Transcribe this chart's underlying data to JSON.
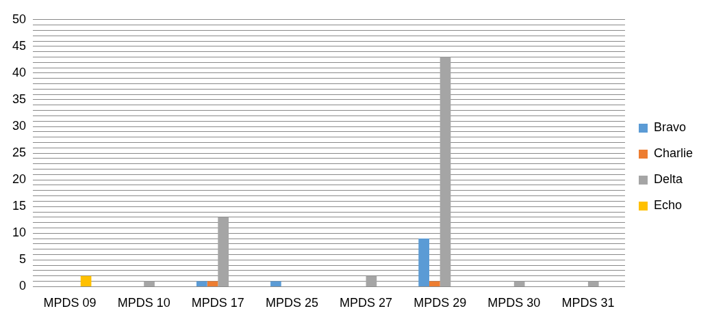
{
  "chart_data": {
    "type": "bar",
    "categories": [
      "MPDS 09",
      "MPDS 10",
      "MPDS 17",
      "MPDS 25",
      "MPDS 27",
      "MPDS 29",
      "MPDS 30",
      "MPDS 31"
    ],
    "series": [
      {
        "name": "Bravo",
        "color": "#5b9bd5",
        "values": [
          0,
          0,
          1,
          1,
          0,
          9,
          0,
          0
        ]
      },
      {
        "name": "Charlie",
        "color": "#ed7d31",
        "values": [
          0,
          0,
          1,
          0,
          0,
          1,
          0,
          0
        ]
      },
      {
        "name": "Delta",
        "color": "#a5a5a5",
        "values": [
          0,
          1,
          13,
          0,
          2,
          43,
          1,
          1
        ]
      },
      {
        "name": "Echo",
        "color": "#ffc000",
        "values": [
          2,
          0,
          0,
          0,
          0,
          0,
          0,
          0
        ]
      }
    ],
    "ylim": [
      0,
      50
    ],
    "yticks": [
      0,
      {
        "value": 1,
        "label": null
      },
      {
        "value": 2,
        "label": null
      },
      {
        "value": 3,
        "label": null
      },
      {
        "value": 4,
        "label": null
      },
      5,
      {
        "value": 6,
        "label": null
      },
      {
        "value": 7,
        "label": null
      },
      {
        "value": 8,
        "label": null
      },
      {
        "value": 9,
        "label": null
      },
      10,
      {
        "value": 11,
        "label": null
      },
      {
        "value": 12,
        "label": null
      },
      {
        "value": 13,
        "label": null
      },
      {
        "value": 14,
        "label": null
      },
      15,
      {
        "value": 16,
        "label": null
      },
      {
        "value": 17,
        "label": null
      },
      {
        "value": 18,
        "label": null
      },
      {
        "value": 19,
        "label": null
      },
      20,
      {
        "value": 21,
        "label": null
      },
      {
        "value": 22,
        "label": null
      },
      {
        "value": 23,
        "label": null
      },
      {
        "value": 24,
        "label": null
      },
      25,
      {
        "value": 26,
        "label": null
      },
      {
        "value": 27,
        "label": null
      },
      {
        "value": 28,
        "label": null
      },
      {
        "value": 29,
        "label": null
      },
      30,
      {
        "value": 31,
        "label": null
      },
      {
        "value": 32,
        "label": null
      },
      {
        "value": 33,
        "label": null
      },
      {
        "value": 34,
        "label": null
      },
      35,
      {
        "value": 36,
        "label": null
      },
      {
        "value": 37,
        "label": null
      },
      {
        "value": 38,
        "label": null
      },
      {
        "value": 39,
        "label": null
      },
      40,
      {
        "value": 41,
        "label": null
      },
      {
        "value": 42,
        "label": null
      },
      {
        "value": 43,
        "label": null
      },
      {
        "value": 44,
        "label": null
      },
      45,
      {
        "value": 46,
        "label": null
      },
      {
        "value": 47,
        "label": null
      },
      {
        "value": 48,
        "label": null
      },
      {
        "value": 49,
        "label": null
      },
      50
    ],
    "grid": "y",
    "legend": "right"
  }
}
